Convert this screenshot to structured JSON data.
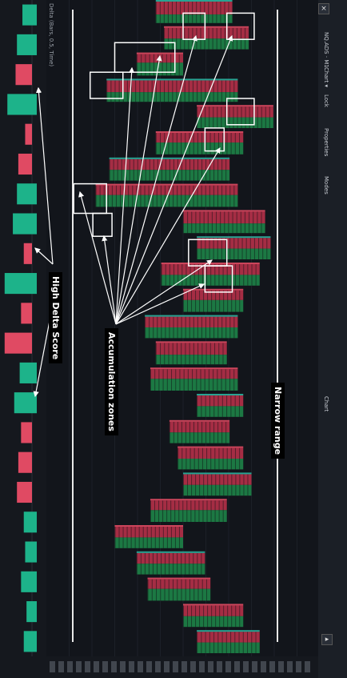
{
  "toolbar": {
    "symbol": "NQ.ADS",
    "timeframe": "M1",
    "chart_type_menu": "Chart ▾",
    "items": [
      "Lock",
      "Properties",
      "Modes"
    ],
    "close": "×"
  },
  "indicator": {
    "label": "Delta (Bars, 0.5, Time)"
  },
  "annotations": {
    "high_delta_score": "High Delta Score",
    "accumulation_zones": "Accumulation zones",
    "narrow_range": "Narrow range"
  },
  "bottom_label": "Chart",
  "colors": {
    "background": "#12151b",
    "buy_green": "#1e8a4a",
    "sell_red": "#c0314b",
    "delta_green": "#1db38a",
    "delta_red": "#e04a63",
    "annotation_white": "#ffffff"
  },
  "delta_bars": [
    {
      "dir": "up",
      "value": 0.35
    },
    {
      "dir": "up",
      "value": 0.55
    },
    {
      "dir": "down",
      "value": 0.6
    },
    {
      "dir": "up",
      "value": 0.9
    },
    {
      "dir": "down",
      "value": 0.25
    },
    {
      "dir": "down",
      "value": 0.5
    },
    {
      "dir": "up",
      "value": 0.55
    },
    {
      "dir": "up",
      "value": 0.7
    },
    {
      "dir": "down",
      "value": 0.3
    },
    {
      "dir": "up",
      "value": 1.0
    },
    {
      "dir": "down",
      "value": 0.4
    },
    {
      "dir": "down",
      "value": 1.0
    },
    {
      "dir": "up",
      "value": 0.45
    },
    {
      "dir": "up",
      "value": 0.65
    },
    {
      "dir": "down",
      "value": 0.4
    },
    {
      "dir": "down",
      "value": 0.5
    },
    {
      "dir": "down",
      "value": 0.55
    },
    {
      "dir": "up",
      "value": 0.3
    },
    {
      "dir": "up",
      "value": 0.25
    },
    {
      "dir": "up",
      "value": 0.4
    },
    {
      "dir": "up",
      "value": 0.2
    },
    {
      "dir": "up",
      "value": 0.3
    }
  ],
  "footprint_candles": [
    {
      "low": 0.4,
      "high": 0.68,
      "buy_ratio": 0.4
    },
    {
      "low": 0.43,
      "high": 0.74,
      "buy_ratio": 0.5
    },
    {
      "low": 0.33,
      "high": 0.5,
      "buy_ratio": 0.6
    },
    {
      "low": 0.22,
      "high": 0.7,
      "buy_ratio": 0.45
    },
    {
      "low": 0.55,
      "high": 0.83,
      "buy_ratio": 0.5
    },
    {
      "low": 0.4,
      "high": 0.72,
      "buy_ratio": 0.55
    },
    {
      "low": 0.23,
      "high": 0.67,
      "buy_ratio": 0.5
    },
    {
      "low": 0.18,
      "high": 0.7,
      "buy_ratio": 0.55
    },
    {
      "low": 0.5,
      "high": 0.8,
      "buy_ratio": 0.45
    },
    {
      "low": 0.55,
      "high": 0.82,
      "buy_ratio": 0.5
    },
    {
      "low": 0.42,
      "high": 0.78,
      "buy_ratio": 0.5
    },
    {
      "low": 0.5,
      "high": 0.72,
      "buy_ratio": 0.55
    },
    {
      "low": 0.36,
      "high": 0.7,
      "buy_ratio": 0.5
    },
    {
      "low": 0.4,
      "high": 0.66,
      "buy_ratio": 0.45
    },
    {
      "low": 0.38,
      "high": 0.7,
      "buy_ratio": 0.55
    },
    {
      "low": 0.55,
      "high": 0.72,
      "buy_ratio": 0.5
    },
    {
      "low": 0.45,
      "high": 0.67,
      "buy_ratio": 0.5
    },
    {
      "low": 0.48,
      "high": 0.72,
      "buy_ratio": 0.5
    },
    {
      "low": 0.5,
      "high": 0.75,
      "buy_ratio": 0.5
    },
    {
      "low": 0.38,
      "high": 0.66,
      "buy_ratio": 0.55
    },
    {
      "low": 0.25,
      "high": 0.5,
      "buy_ratio": 0.5
    },
    {
      "low": 0.33,
      "high": 0.58,
      "buy_ratio": 0.5
    },
    {
      "low": 0.37,
      "high": 0.6,
      "buy_ratio": 0.55
    },
    {
      "low": 0.5,
      "high": 0.72,
      "buy_ratio": 0.5
    },
    {
      "low": 0.55,
      "high": 0.78,
      "buy_ratio": 0.5
    }
  ]
}
